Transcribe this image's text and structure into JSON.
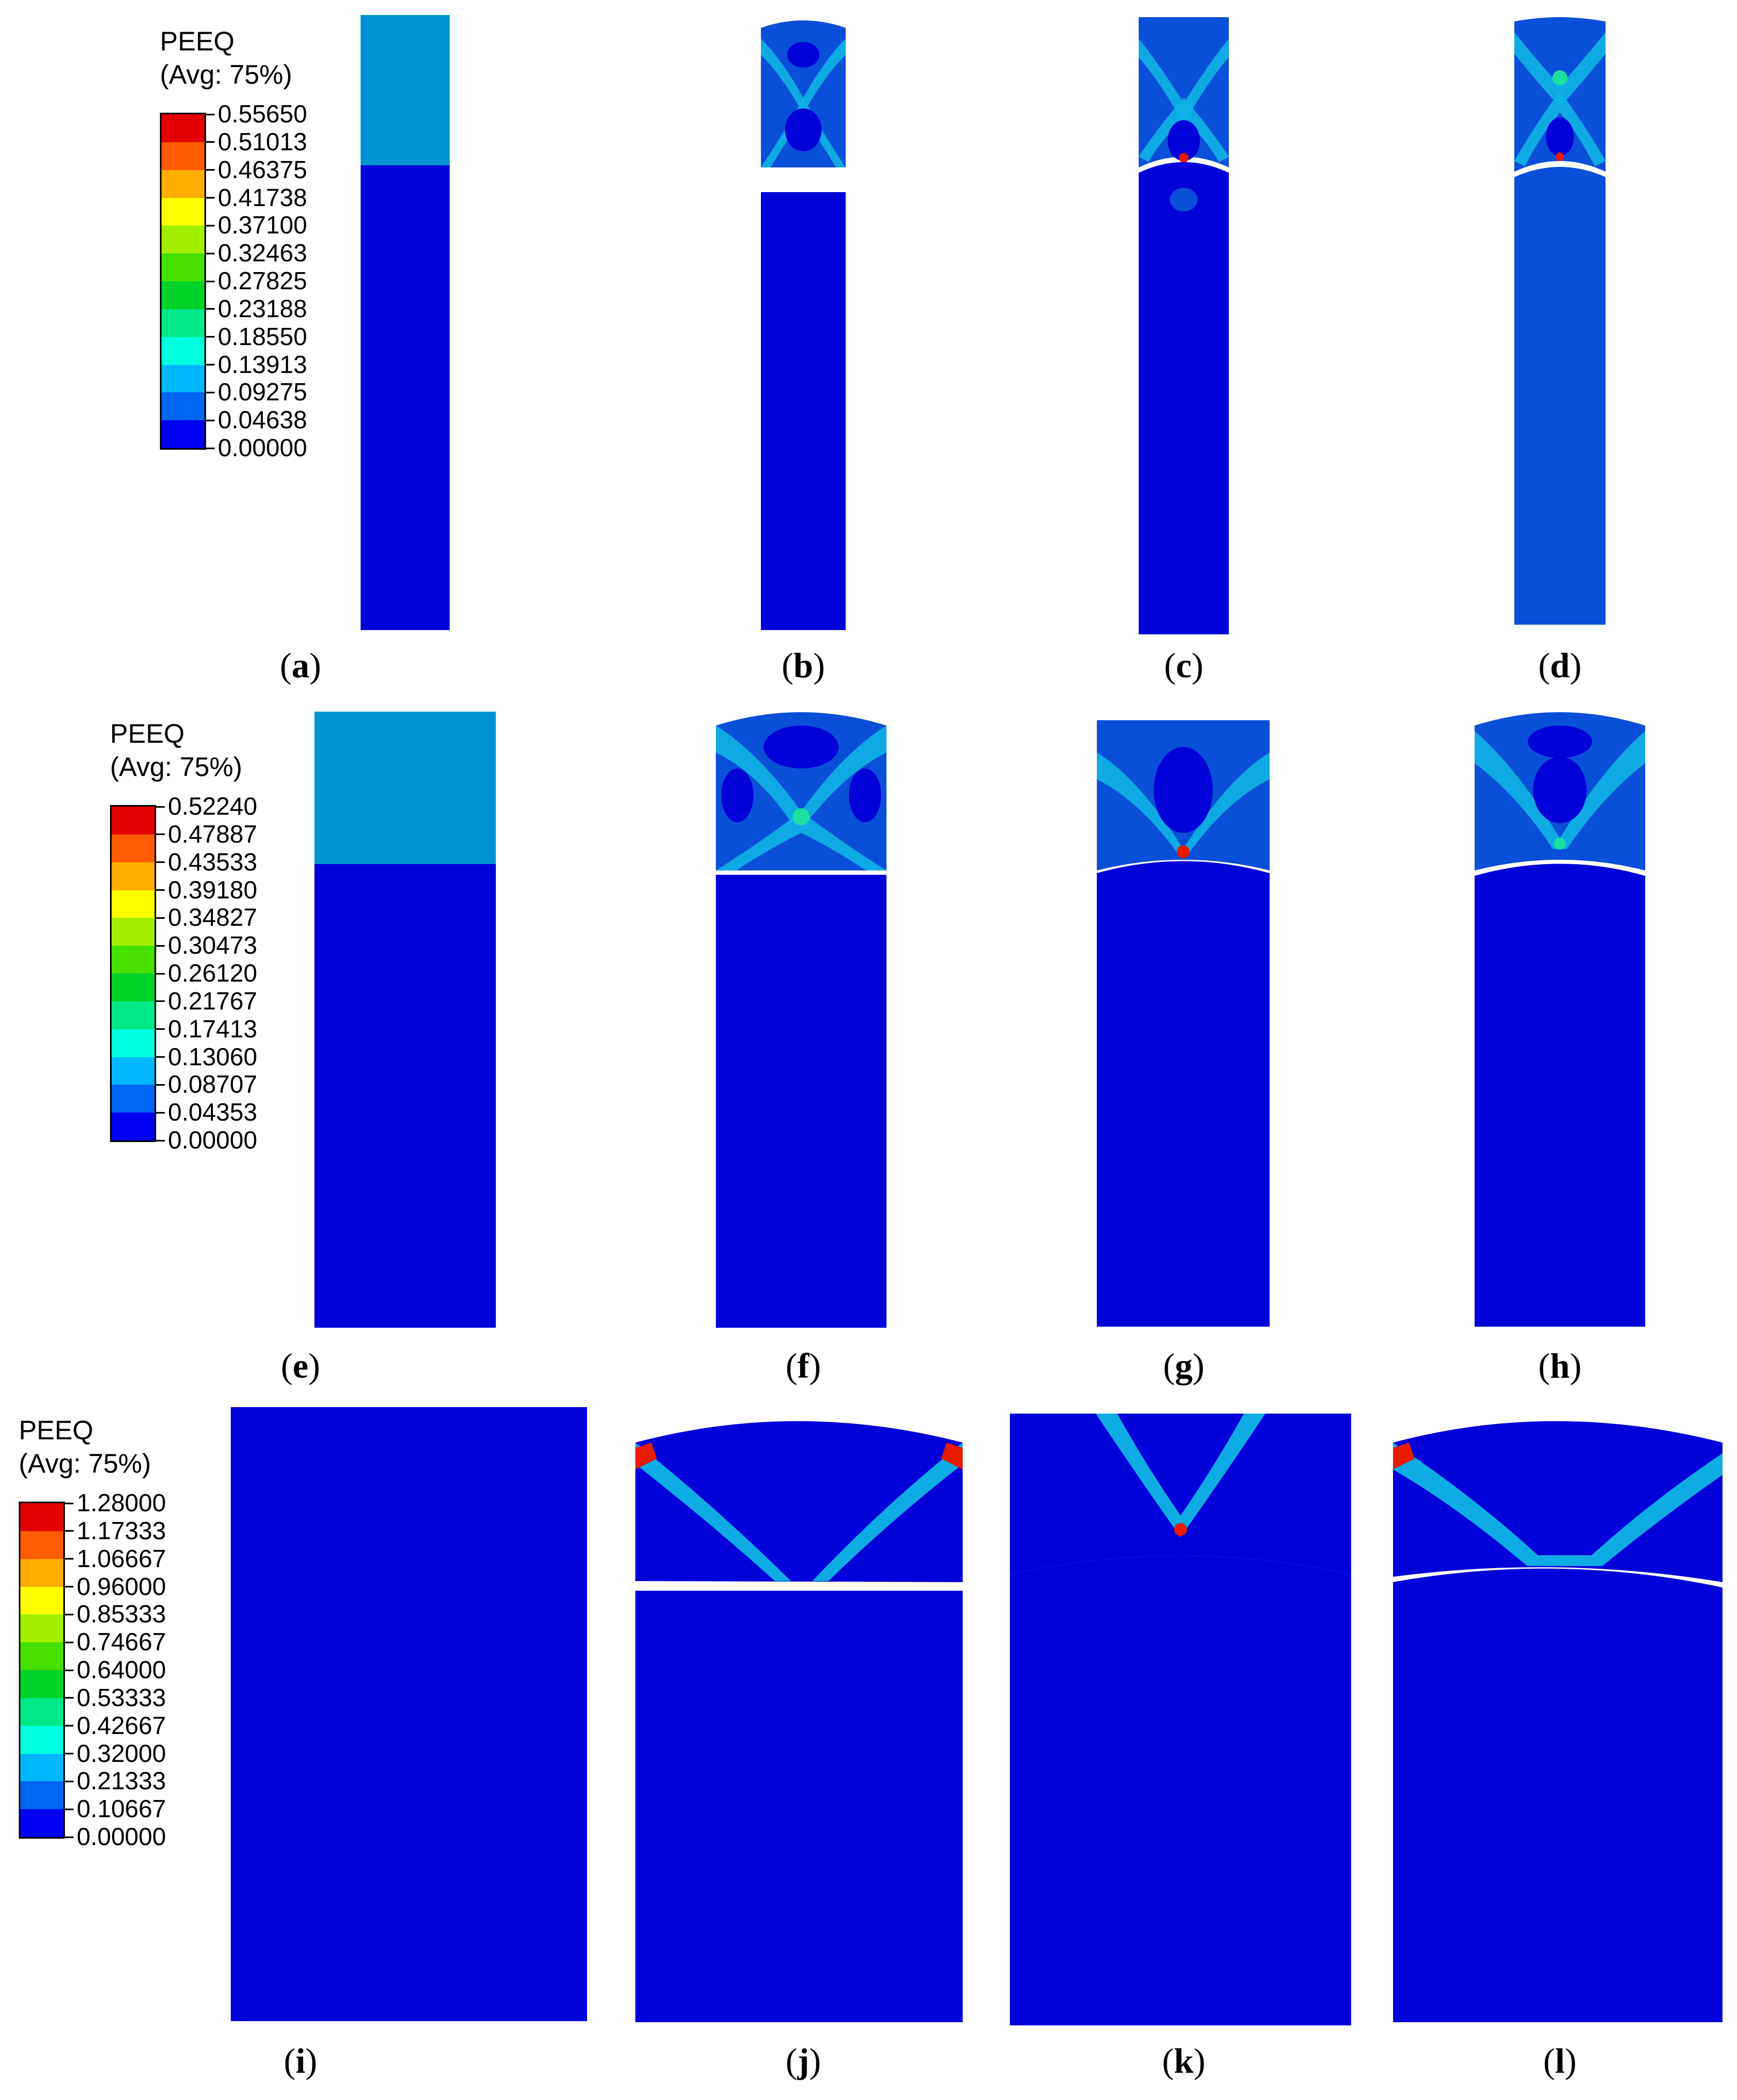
{
  "legends": [
    {
      "title": "PEEQ",
      "subtitle": "(Avg: 75%)",
      "values": [
        "0.55650",
        "0.51013",
        "0.46375",
        "0.41738",
        "0.37100",
        "0.32463",
        "0.27825",
        "0.23188",
        "0.18550",
        "0.13913",
        "0.09275",
        "0.04638",
        "0.00000"
      ]
    },
    {
      "title": "PEEQ",
      "subtitle": "(Avg: 75%)",
      "values": [
        "0.52240",
        "0.47887",
        "0.43533",
        "0.39180",
        "0.34827",
        "0.30473",
        "0.26120",
        "0.21767",
        "0.17413",
        "0.13060",
        "0.08707",
        "0.04353",
        "0.00000"
      ]
    },
    {
      "title": "PEEQ",
      "subtitle": "(Avg: 75%)",
      "values": [
        "1.28000",
        "1.17333",
        "1.06667",
        "0.96000",
        "0.85333",
        "0.74667",
        "0.64000",
        "0.53333",
        "0.42667",
        "0.32000",
        "0.21333",
        "0.10667",
        "0.00000"
      ]
    }
  ],
  "contour_colors": [
    "#e30000",
    "#ff5b00",
    "#ffad00",
    "#ffff00",
    "#a2f000",
    "#45e000",
    "#00d22a",
    "#00e887",
    "#00ffdf",
    "#00b7ff",
    "#0066f0",
    "#0000f0"
  ],
  "colors": {
    "base_blue": "#0000d8",
    "uniform_light": "#0094d4",
    "mid_blue": "#0a4fd8",
    "band_cyan": "#10b4e6",
    "band_green": "#1de0a0",
    "hot_red": "#e81a00",
    "background": "#ffffff"
  },
  "captions": [
    "a",
    "b",
    "c",
    "d",
    "e",
    "f",
    "g",
    "h",
    "i",
    "j",
    "k",
    "l"
  ]
}
